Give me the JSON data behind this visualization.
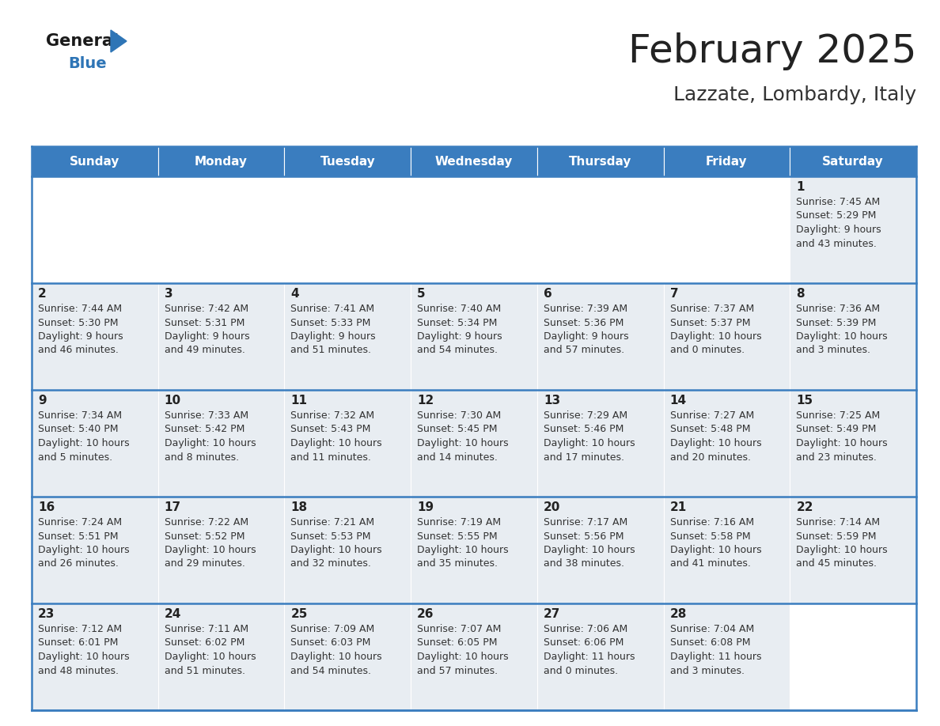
{
  "title": "February 2025",
  "subtitle": "Lazzate, Lombardy, Italy",
  "days_of_week": [
    "Sunday",
    "Monday",
    "Tuesday",
    "Wednesday",
    "Thursday",
    "Friday",
    "Saturday"
  ],
  "header_bg": "#3a7dbf",
  "header_text": "#ffffff",
  "cell_bg": "#e8edf2",
  "cell_bg_empty": "#ffffff",
  "border_color": "#3a7dbf",
  "day_number_color": "#222222",
  "cell_text_color": "#333333",
  "title_color": "#222222",
  "subtitle_color": "#333333",
  "logo_general_color": "#1a1a1a",
  "logo_blue_color": "#2e75b6",
  "logo_triangle_color": "#2e75b6",
  "calendar_data": [
    [
      null,
      null,
      null,
      null,
      null,
      null,
      {
        "day": 1,
        "sunrise": "7:45 AM",
        "sunset": "5:29 PM",
        "daylight": "9 hours and 43 minutes."
      }
    ],
    [
      {
        "day": 2,
        "sunrise": "7:44 AM",
        "sunset": "5:30 PM",
        "daylight": "9 hours and 46 minutes."
      },
      {
        "day": 3,
        "sunrise": "7:42 AM",
        "sunset": "5:31 PM",
        "daylight": "9 hours and 49 minutes."
      },
      {
        "day": 4,
        "sunrise": "7:41 AM",
        "sunset": "5:33 PM",
        "daylight": "9 hours and 51 minutes."
      },
      {
        "day": 5,
        "sunrise": "7:40 AM",
        "sunset": "5:34 PM",
        "daylight": "9 hours and 54 minutes."
      },
      {
        "day": 6,
        "sunrise": "7:39 AM",
        "sunset": "5:36 PM",
        "daylight": "9 hours and 57 minutes."
      },
      {
        "day": 7,
        "sunrise": "7:37 AM",
        "sunset": "5:37 PM",
        "daylight": "10 hours and 0 minutes."
      },
      {
        "day": 8,
        "sunrise": "7:36 AM",
        "sunset": "5:39 PM",
        "daylight": "10 hours and 3 minutes."
      }
    ],
    [
      {
        "day": 9,
        "sunrise": "7:34 AM",
        "sunset": "5:40 PM",
        "daylight": "10 hours and 5 minutes."
      },
      {
        "day": 10,
        "sunrise": "7:33 AM",
        "sunset": "5:42 PM",
        "daylight": "10 hours and 8 minutes."
      },
      {
        "day": 11,
        "sunrise": "7:32 AM",
        "sunset": "5:43 PM",
        "daylight": "10 hours and 11 minutes."
      },
      {
        "day": 12,
        "sunrise": "7:30 AM",
        "sunset": "5:45 PM",
        "daylight": "10 hours and 14 minutes."
      },
      {
        "day": 13,
        "sunrise": "7:29 AM",
        "sunset": "5:46 PM",
        "daylight": "10 hours and 17 minutes."
      },
      {
        "day": 14,
        "sunrise": "7:27 AM",
        "sunset": "5:48 PM",
        "daylight": "10 hours and 20 minutes."
      },
      {
        "day": 15,
        "sunrise": "7:25 AM",
        "sunset": "5:49 PM",
        "daylight": "10 hours and 23 minutes."
      }
    ],
    [
      {
        "day": 16,
        "sunrise": "7:24 AM",
        "sunset": "5:51 PM",
        "daylight": "10 hours and 26 minutes."
      },
      {
        "day": 17,
        "sunrise": "7:22 AM",
        "sunset": "5:52 PM",
        "daylight": "10 hours and 29 minutes."
      },
      {
        "day": 18,
        "sunrise": "7:21 AM",
        "sunset": "5:53 PM",
        "daylight": "10 hours and 32 minutes."
      },
      {
        "day": 19,
        "sunrise": "7:19 AM",
        "sunset": "5:55 PM",
        "daylight": "10 hours and 35 minutes."
      },
      {
        "day": 20,
        "sunrise": "7:17 AM",
        "sunset": "5:56 PM",
        "daylight": "10 hours and 38 minutes."
      },
      {
        "day": 21,
        "sunrise": "7:16 AM",
        "sunset": "5:58 PM",
        "daylight": "10 hours and 41 minutes."
      },
      {
        "day": 22,
        "sunrise": "7:14 AM",
        "sunset": "5:59 PM",
        "daylight": "10 hours and 45 minutes."
      }
    ],
    [
      {
        "day": 23,
        "sunrise": "7:12 AM",
        "sunset": "6:01 PM",
        "daylight": "10 hours and 48 minutes."
      },
      {
        "day": 24,
        "sunrise": "7:11 AM",
        "sunset": "6:02 PM",
        "daylight": "10 hours and 51 minutes."
      },
      {
        "day": 25,
        "sunrise": "7:09 AM",
        "sunset": "6:03 PM",
        "daylight": "10 hours and 54 minutes."
      },
      {
        "day": 26,
        "sunrise": "7:07 AM",
        "sunset": "6:05 PM",
        "daylight": "10 hours and 57 minutes."
      },
      {
        "day": 27,
        "sunrise": "7:06 AM",
        "sunset": "6:06 PM",
        "daylight": "11 hours and 0 minutes."
      },
      {
        "day": 28,
        "sunrise": "7:04 AM",
        "sunset": "6:08 PM",
        "daylight": "11 hours and 3 minutes."
      },
      null
    ]
  ]
}
